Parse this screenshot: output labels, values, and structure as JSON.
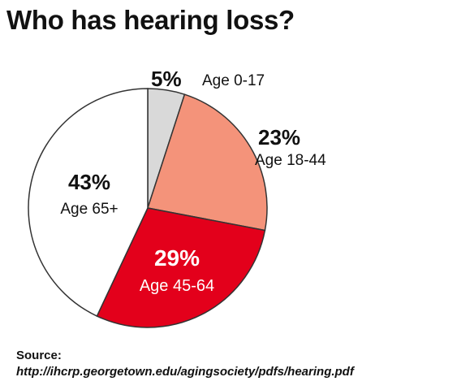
{
  "chart_data": {
    "type": "pie",
    "title": "Who has hearing loss?",
    "slices": [
      {
        "label": "Age 0-17",
        "value": 5,
        "value_label": "5%",
        "color": "#d9d9d9",
        "text_color": "#111111"
      },
      {
        "label": "Age 18-44",
        "value": 23,
        "value_label": "23%",
        "color": "#f4937a",
        "text_color": "#111111"
      },
      {
        "label": "Age 45-64",
        "value": 29,
        "value_label": "29%",
        "color": "#e3001b",
        "text_color": "#ffffff"
      },
      {
        "label": "Age 65+",
        "value": 43,
        "value_label": "43%",
        "color": "#ffffff",
        "text_color": "#111111"
      }
    ],
    "start_angle_deg": 0,
    "direction": "clockwise"
  },
  "source": {
    "label": "Source:",
    "url": "http://ihcrp.georgetown.edu/agingsociety/pdfs/hearing.pdf"
  },
  "colors": {
    "outline": "#333333"
  }
}
